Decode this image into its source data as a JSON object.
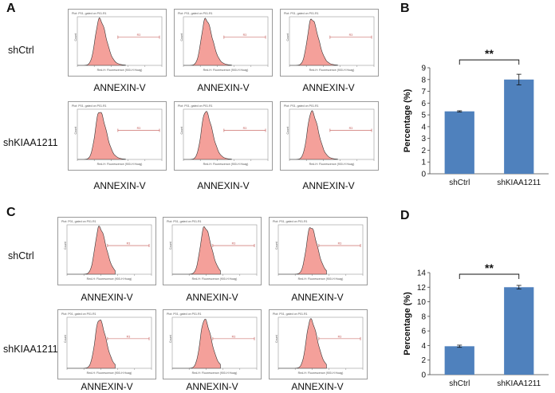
{
  "panels": {
    "A": {
      "letter": "A",
      "row_labels": [
        "shCtrl",
        "shKIAA1211"
      ],
      "xlabel": "ANNEXIN-V"
    },
    "B": {
      "letter": "B"
    },
    "C": {
      "letter": "C",
      "row_labels": [
        "shCtrl",
        "shKIAA1211"
      ],
      "xlabel": "ANNEXIN-V"
    },
    "D": {
      "letter": "D"
    }
  },
  "histogram_text": {
    "header": "Plot: P01, gated on P01.R1",
    "axis": "Red-H: Fluorescence (900-H Hoag)",
    "ylabel": "Count",
    "gate": "R3"
  },
  "chart_data": [
    {
      "panel": "B",
      "type": "bar",
      "categories": [
        "shCtrl",
        "shKIAA1211"
      ],
      "values": [
        5.3,
        8.0
      ],
      "errors": [
        0.05,
        0.45
      ],
      "ylabel": "Percentage (%)",
      "xlabel": "",
      "ylim": [
        0,
        9
      ],
      "yticks": [
        0,
        1,
        2,
        3,
        4,
        5,
        6,
        7,
        8,
        9
      ],
      "significance": "**",
      "bar_color": "#4f81bd"
    },
    {
      "panel": "D",
      "type": "bar",
      "categories": [
        "shCtrl",
        "shKIAA1211"
      ],
      "values": [
        3.9,
        12.0
      ],
      "errors": [
        0.15,
        0.25
      ],
      "ylabel": "Percentage (%)",
      "xlabel": "",
      "ylim": [
        0,
        14
      ],
      "yticks": [
        0,
        2,
        4,
        6,
        8,
        10,
        12,
        14
      ],
      "significance": "**",
      "bar_color": "#4f81bd"
    }
  ]
}
